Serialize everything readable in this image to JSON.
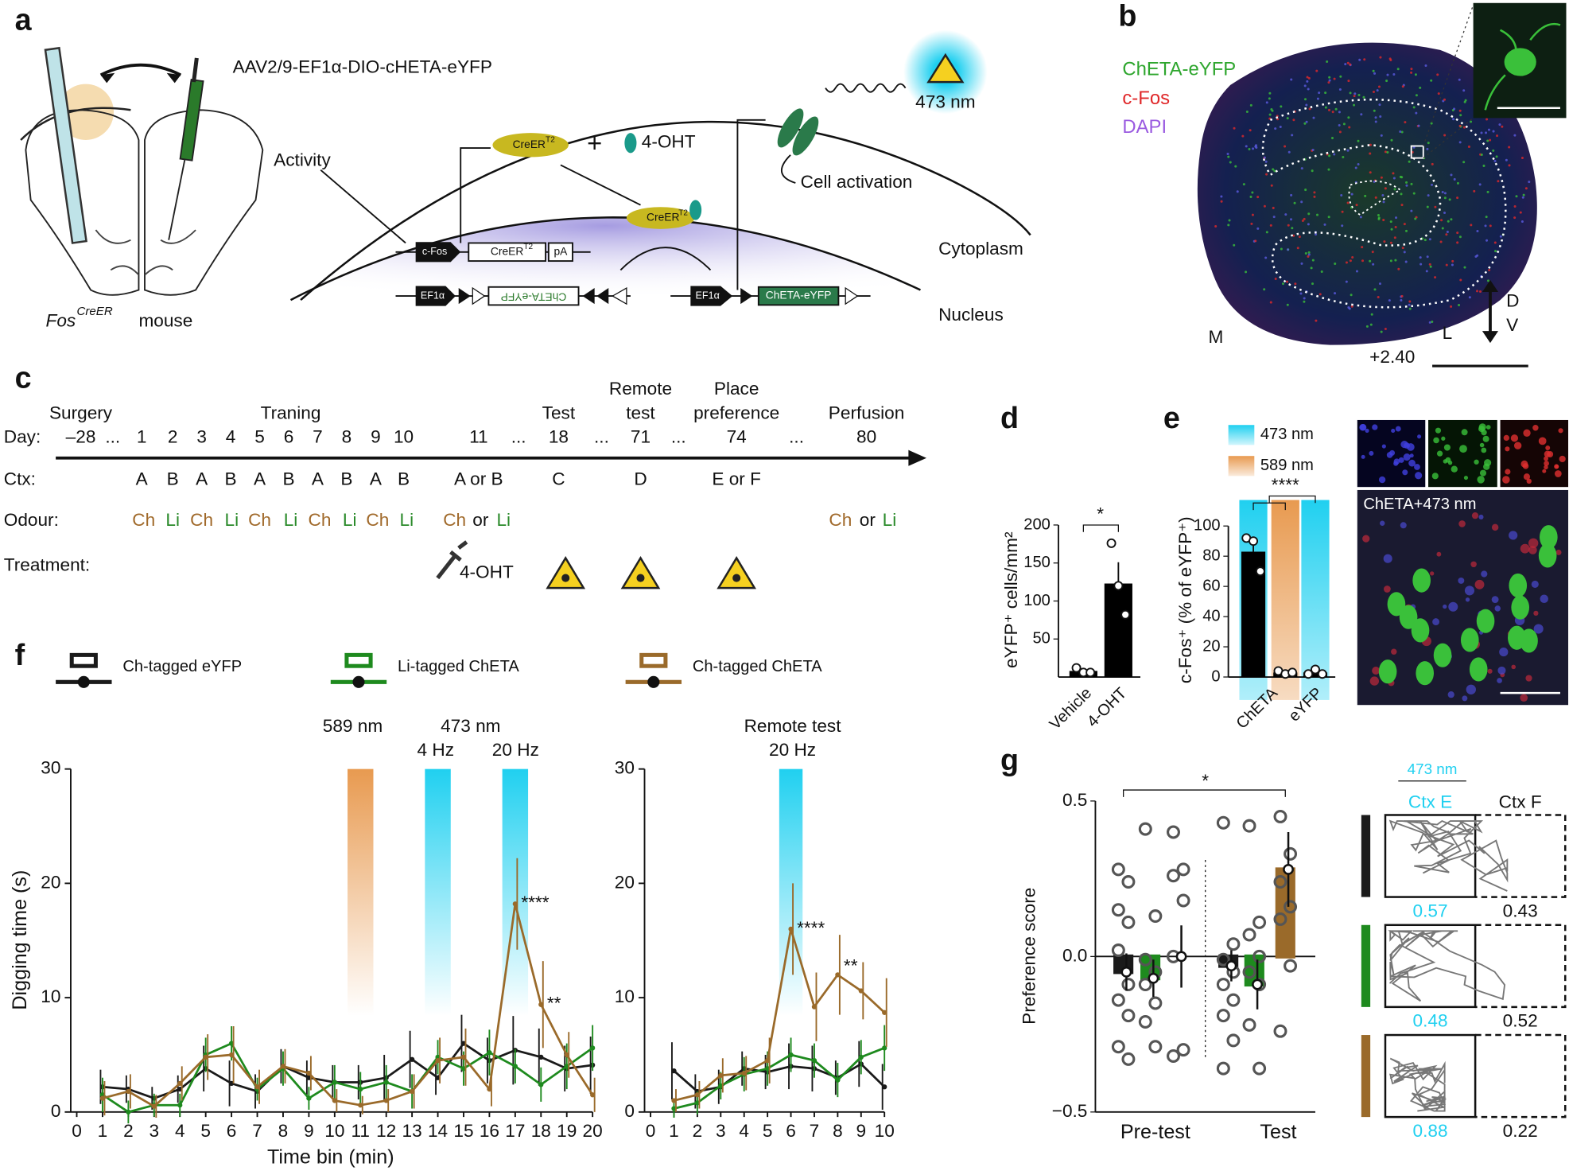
{
  "panel_labels": [
    "a",
    "b",
    "c",
    "d",
    "e",
    "f",
    "g"
  ],
  "a": {
    "virus": "AAV2/9-EF1α-DIO-cHETA-eYFP",
    "light": "473 nm",
    "activity": "Activity",
    "creer": "CreER",
    "t2": "T2",
    "plus": "+",
    "oht": "4-OHT",
    "cell_activation": "Cell activation",
    "cfos": "c-Fos",
    "pa": "pA",
    "cytoplasm": "Cytoplasm",
    "ef1a": "EF1α",
    "cheta_eyfp": "ChETA-eYFP",
    "nucleus": "Nucleus",
    "mouse_gene": "Fos",
    "mouse_sup": "CreER",
    "mouse": "mouse"
  },
  "b": {
    "legend": [
      "ChETA-eYFP",
      "c-Fos",
      "DAPI"
    ],
    "legend_colors": [
      "#2ea62e",
      "#e0282a",
      "#9a5ae0"
    ],
    "m": "M",
    "l": "L",
    "d": "D",
    "v": "V",
    "coord": "+2.40"
  },
  "c": {
    "headers": [
      [
        "Surgery"
      ],
      [
        "Traning"
      ],
      [
        "Test"
      ],
      [
        "Remote",
        "test"
      ],
      [
        "Place",
        "preference"
      ],
      [
        "Perfusion"
      ]
    ],
    "row_labels": [
      "Day:",
      "Ctx:",
      "Odour:",
      "Treatment:"
    ],
    "days": [
      "–28",
      "...",
      "1",
      "2",
      "3",
      "4",
      "5",
      "6",
      "7",
      "8",
      "9",
      "10",
      "11",
      "...",
      "18",
      "...",
      "71",
      "...",
      "74",
      "...",
      "80"
    ],
    "contexts": [
      "A",
      "B",
      "A",
      "B",
      "A",
      "B",
      "A",
      "B",
      "A",
      "B",
      "A or B",
      "C",
      "D",
      "E or F"
    ],
    "odours": [
      "Ch",
      "Li",
      "Ch",
      "Li",
      "Ch",
      "Li",
      "Ch",
      "Li",
      "Ch",
      "Li",
      "Ch",
      "or",
      "Li",
      "Ch",
      "or",
      "Li"
    ],
    "odour_colors": {
      "Ch": "#a0692a",
      "Li": "#2a8a2a"
    },
    "treatment": "4-OHT"
  },
  "chart_data": [
    {
      "type": "line",
      "xlabel": "Time bin (min)",
      "ylabel": "Digging time (s)",
      "x": [
        1,
        2,
        3,
        4,
        5,
        6,
        7,
        8,
        9,
        10,
        11,
        12,
        13,
        14,
        15,
        16,
        17,
        18,
        19,
        20
      ],
      "xlim": [
        0,
        20
      ],
      "xticks": [
        0,
        1,
        2,
        3,
        4,
        5,
        6,
        7,
        8,
        9,
        10,
        11,
        12,
        13,
        14,
        15,
        16,
        17,
        18,
        19,
        20
      ],
      "ylim": [
        0,
        30
      ],
      "yticks": [
        0,
        10,
        20,
        30
      ],
      "series": [
        {
          "name": "Ch-tagged eYFP",
          "color": "#1a1a1a",
          "values": [
            2.2,
            2.0,
            1.2,
            2.0,
            3.8,
            2.5,
            1.8,
            4.0,
            3.0,
            2.6,
            2.6,
            3.0,
            4.6,
            3.0,
            6.0,
            4.5,
            5.4,
            4.8,
            3.8,
            4.1
          ],
          "errors": [
            1.5,
            1.2,
            1,
            1.2,
            2,
            2,
            1.5,
            1.5,
            1.5,
            1.5,
            1.5,
            2,
            2.5,
            1.5,
            2.5,
            2,
            3,
            2.5,
            2,
            2.5
          ]
        },
        {
          "name": "Li-tagged ChETA",
          "color": "#1e8a1e",
          "values": [
            1.5,
            0,
            0.6,
            0.6,
            5.0,
            6.0,
            2.0,
            3.8,
            1.2,
            2.6,
            2.0,
            2.6,
            1.8,
            4.8,
            3.8,
            5.2,
            4.0,
            2.4,
            4.0,
            5.6
          ],
          "errors": [
            1.5,
            1,
            1,
            1,
            1.5,
            1.5,
            1,
            1.5,
            1,
            1.5,
            1.5,
            1.5,
            1.5,
            1.5,
            1.5,
            2,
            1.5,
            1.5,
            2,
            2
          ]
        },
        {
          "name": "Ch-tagged ChETA",
          "color": "#9a6a2a",
          "values": [
            1.2,
            1.8,
            0.5,
            2.5,
            4.8,
            5.0,
            2.2,
            4.0,
            3.4,
            1.0,
            0.6,
            1.0,
            1.8,
            4.5,
            4.8,
            2.0,
            18.2,
            9.4,
            5.0,
            1.5
          ],
          "errors": [
            1.5,
            1.5,
            1,
            1.5,
            2,
            2.5,
            1.5,
            1.5,
            1.5,
            1,
            0.8,
            1,
            1.5,
            2,
            2.5,
            1.5,
            4,
            3.8,
            2,
            1.5
          ]
        }
      ],
      "stimuli": [
        {
          "x": [
            10.5,
            11.5
          ],
          "color": "#e89a50"
        },
        {
          "x": [
            13.5,
            14.5
          ],
          "color": "#20d0f0"
        },
        {
          "x": [
            16.5,
            17.5
          ],
          "color": "#20d0f0"
        }
      ],
      "stim_labels": [
        "589 nm",
        "473 nm",
        "4 Hz",
        "20 Hz"
      ],
      "annotations": [
        "****",
        "**"
      ]
    },
    {
      "type": "line",
      "title": "Remote test",
      "subtitle": "20 Hz",
      "x": [
        1,
        2,
        3,
        4,
        5,
        6,
        7,
        8,
        9,
        10
      ],
      "xlim": [
        0,
        10
      ],
      "xticks": [
        0,
        1,
        2,
        3,
        4,
        5,
        6,
        7,
        8,
        9,
        10
      ],
      "ylim": [
        0,
        30
      ],
      "yticks": [
        0,
        10,
        20,
        30
      ],
      "series": [
        {
          "color": "#1a1a1a",
          "values": [
            3.6,
            1.8,
            2.2,
            3.8,
            3.5,
            4.0,
            3.8,
            3.0,
            4.2,
            2.2
          ],
          "errors": [
            2.5,
            1.5,
            1.5,
            1.5,
            1.5,
            2,
            2,
            1.5,
            2,
            2
          ]
        },
        {
          "color": "#1e8a1e",
          "values": [
            0.3,
            0.8,
            2.3,
            3.3,
            3.8,
            5.0,
            4.5,
            2.8,
            4.8,
            5.6
          ],
          "errors": [
            0.8,
            1,
            1.2,
            1.5,
            1.5,
            1.5,
            1.5,
            1.5,
            1.5,
            2
          ]
        },
        {
          "color": "#9a6a2a",
          "values": [
            1.0,
            1.5,
            3.2,
            3.4,
            4.5,
            16.0,
            9.2,
            12.0,
            10.6,
            8.7
          ],
          "errors": [
            1,
            1.2,
            1.5,
            1.5,
            2,
            4,
            3,
            3.5,
            2.5,
            3
          ]
        }
      ],
      "stimuli": [
        {
          "x": [
            5.5,
            6.5
          ],
          "color": "#20d0f0"
        }
      ],
      "annotations": [
        "****",
        "**"
      ]
    },
    {
      "type": "bar",
      "categories": [
        "Vehicle",
        "4-OHT"
      ],
      "values": [
        8,
        123
      ],
      "errors": [
        3,
        28
      ],
      "points": [
        [
          12,
          6,
          6
        ],
        [
          176,
          120,
          82
        ]
      ],
      "color": "#000000",
      "ylim": [
        0,
        200
      ],
      "yticks": [
        50,
        100,
        150,
        200
      ],
      "ylabel": "eYFP⁺ cells/mm²",
      "annotation": "*"
    },
    {
      "type": "bar",
      "categories": [
        "ChETA",
        "eYFP"
      ],
      "bar_color": "#000000",
      "series": [
        {
          "name": "473 nm",
          "color": "#20d0f0",
          "values": [
            83,
            3
          ],
          "errors": [
            9,
            2
          ],
          "points": [
            [
              92,
              90,
              70
            ],
            [
              2,
              5,
              2
            ]
          ]
        },
        {
          "name": "589 nm",
          "color": "#e89a50",
          "values": [
            3,
            null
          ],
          "errors": [
            2,
            null
          ],
          "points": [
            [
              4,
              2,
              3
            ],
            null
          ]
        }
      ],
      "ylim": [
        0,
        100
      ],
      "yticks": [
        0,
        20,
        40,
        60,
        80,
        100
      ],
      "ylabel": "c-Fos⁺ (% of eYFP⁺)",
      "annotation": "****",
      "image_label": "ChETA+473 nm"
    },
    {
      "type": "bar",
      "categories": [
        "Pre-test",
        "Test"
      ],
      "series": [
        {
          "color": "#1a1a1a",
          "values": [
            -0.05,
            -0.03
          ],
          "errors": [
            0.06,
            0.05
          ],
          "points": [
            [
              0.28,
              0.24,
              0.15,
              0.11,
              0.02,
              -0.09,
              -0.14,
              -0.19,
              -0.29,
              -0.33
            ],
            [
              0.43,
              0.04,
              -0.01,
              -0.05,
              -0.09,
              -0.14,
              -0.19,
              -0.27,
              -0.36
            ]
          ]
        },
        {
          "color": "#1e8a1e",
          "values": [
            -0.07,
            -0.09
          ],
          "errors": [
            0.06,
            0.08
          ],
          "points": [
            [
              0.41,
              0.13,
              -0.01,
              -0.05,
              -0.09,
              -0.15,
              -0.21,
              -0.29
            ],
            [
              0.42,
              0.11,
              0.07,
              0,
              -0.05,
              -0.09,
              -0.22,
              -0.36
            ]
          ]
        },
        {
          "color": "#9a6a2a",
          "values": [
            0.0,
            0.28
          ],
          "errors": [
            0.1,
            0.12
          ],
          "points": [
            [
              0.4,
              0.28,
              0.26,
              0.18,
              0.0,
              -0.3,
              -0.32
            ],
            [
              0.45,
              0.33,
              0.24,
              0.16,
              0.12,
              -0.03,
              -0.24
            ]
          ]
        }
      ],
      "ylim": [
        -0.5,
        0.5
      ],
      "yticks": [
        {
          "value": -0.5,
          "label": "−0.5"
        },
        {
          "value": 0,
          "label": "0.0"
        },
        {
          "value": 0.5,
          "label": "0.5"
        }
      ],
      "ylabel": "Preference score",
      "annotation": "*",
      "trajectory": {
        "light": "473 nm",
        "contexts": [
          "Ctx E",
          "Ctx F"
        ],
        "scores": [
          [
            0.57,
            0.43
          ],
          [
            0.48,
            0.52
          ],
          [
            0.88,
            0.22
          ]
        ]
      }
    }
  ]
}
